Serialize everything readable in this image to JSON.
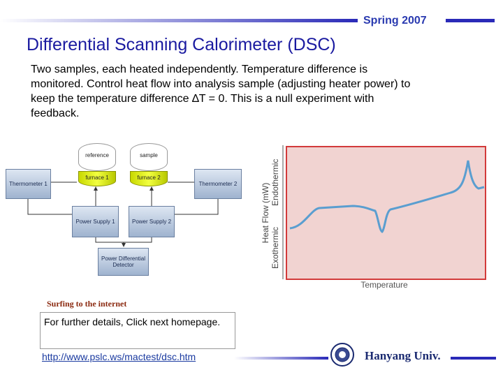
{
  "header": {
    "term": "Spring 2007"
  },
  "title": "Differential Scanning Calorimeter (DSC)",
  "body": "Two samples, each heated independently. Temperature difference is monitored.  Control heat flow into analysis sample (adjusting heater power) to keep the temperature difference ∆T = 0.  This is a null experiment with feedback.",
  "diagram": {
    "nodes": {
      "reference": "reference",
      "sample": "sample",
      "furnace_1": "furnace 1",
      "furnace_2": "furnace 2",
      "thermometer_1": "Thermometer 1",
      "thermometer_2": "Thermometer 2",
      "power_supply_1": "Power Supply 1",
      "power_supply_2": "Power Supply 2",
      "detector": "Power Differential Detector"
    }
  },
  "dsc_plot": {
    "y_label": "Heat Flow (mW)",
    "exothermic": "Exothermic",
    "endothermic": "Endothermic",
    "x_label": "Temperature"
  },
  "link_section": {
    "heading": "Surfing to the internet",
    "note": "For further details, Click next homepage.",
    "url": "http://www.pslc.ws/mactest/dsc.htm"
  },
  "footer": {
    "university": "Hanyang Univ."
  }
}
